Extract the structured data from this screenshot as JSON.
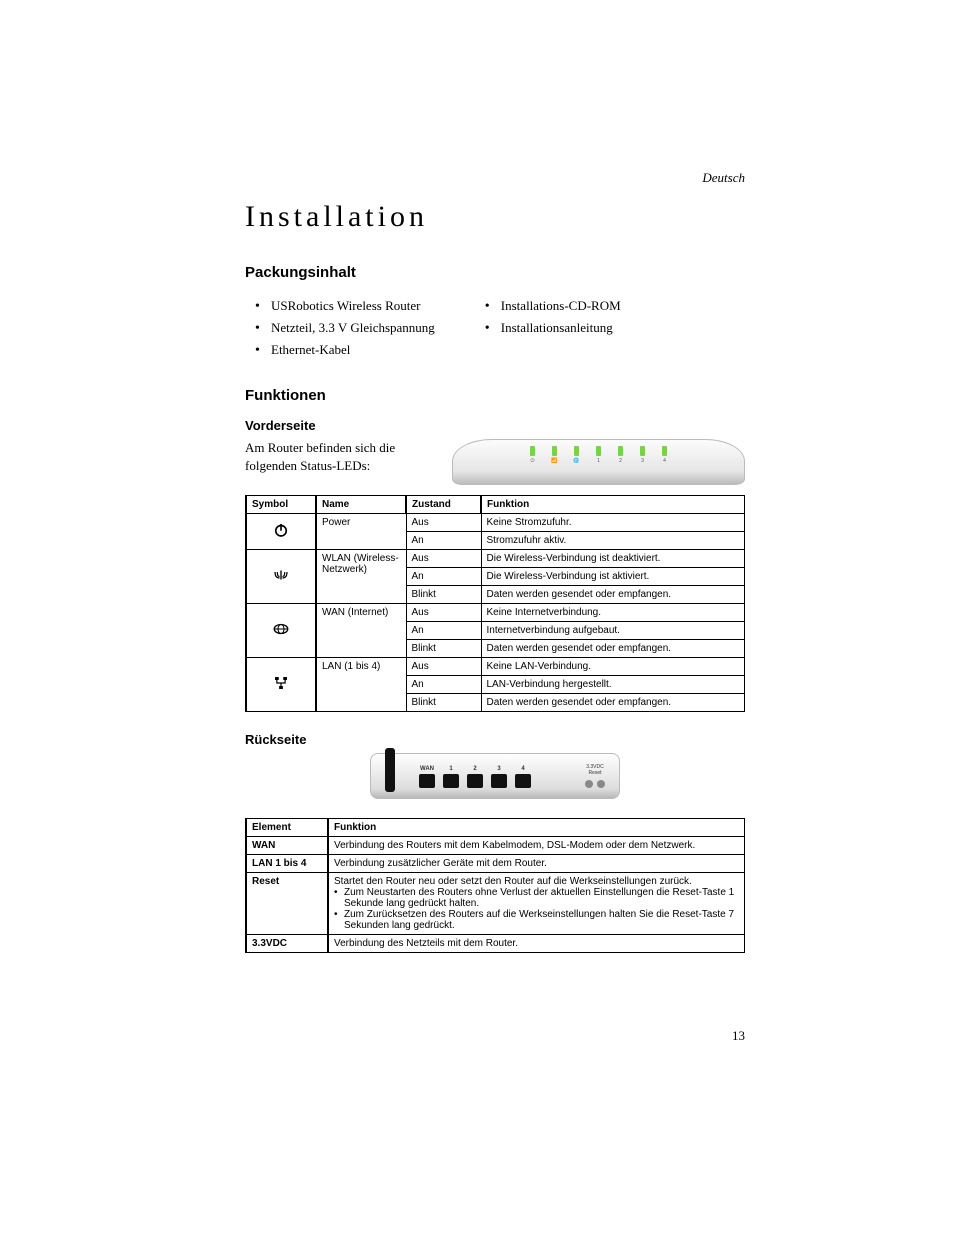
{
  "lang_label": "Deutsch",
  "title": "Installation",
  "contents_heading": "Packungsinhalt",
  "contents_left": [
    "USRobotics Wireless Router",
    "Netzteil, 3.3 V Gleichspannung",
    "Ethernet-Kabel"
  ],
  "contents_right": [
    "Installations-CD-ROM",
    "Installationsanleitung"
  ],
  "features_heading": "Funktionen",
  "front_heading": "Vorderseite",
  "front_text": "Am Router befinden sich die folgenden Status-LEDs:",
  "led_icons": [
    "⏻",
    "📶",
    "🌐",
    "1",
    "2",
    "3",
    "4"
  ],
  "table1": {
    "headers": [
      "Symbol",
      "Name",
      "Zustand",
      "Funktion"
    ],
    "groups": [
      {
        "icon": "power",
        "name": "Power",
        "rows": [
          {
            "state": "Aus",
            "func": "Keine Stromzufuhr."
          },
          {
            "state": "An",
            "func": "Stromzufuhr aktiv."
          }
        ]
      },
      {
        "icon": "wlan",
        "name": "WLAN (Wireless-Netzwerk)",
        "rows": [
          {
            "state": "Aus",
            "func": "Die Wireless-Verbindung ist deaktiviert."
          },
          {
            "state": "An",
            "func": "Die Wireless-Verbindung ist aktiviert."
          },
          {
            "state": "Blinkt",
            "func": "Daten werden gesendet oder empfangen."
          }
        ]
      },
      {
        "icon": "wan",
        "name": "WAN (Internet)",
        "rows": [
          {
            "state": "Aus",
            "func": "Keine Internetverbindung."
          },
          {
            "state": "An",
            "func": "Internetverbindung aufgebaut."
          },
          {
            "state": "Blinkt",
            "func": "Daten werden gesendet oder empfangen."
          }
        ]
      },
      {
        "icon": "lan",
        "name": "LAN (1 bis 4)",
        "rows": [
          {
            "state": "Aus",
            "func": "Keine LAN-Verbindung."
          },
          {
            "state": "An",
            "func": "LAN-Verbindung hergestellt."
          },
          {
            "state": "Blinkt",
            "func": "Daten werden gesendet oder empfangen."
          }
        ]
      }
    ]
  },
  "back_heading": "Rückseite",
  "back_ports": [
    "WAN",
    "1",
    "2",
    "3",
    "4"
  ],
  "back_right_labels": {
    "volt": "3.3VDC",
    "reset": "Reset"
  },
  "table2": {
    "headers": [
      "Element",
      "Funktion"
    ],
    "rows": [
      {
        "el": "WAN",
        "fn": "Verbindung des Routers mit dem Kabelmodem, DSL-Modem oder dem Netzwerk."
      },
      {
        "el": "LAN 1 bis 4",
        "fn": "Verbindung zusätzlicher Geräte mit dem Router."
      },
      {
        "el": "Reset",
        "fn_intro": "Startet den Router neu oder setzt den Router auf die Werkseinstellungen zurück.",
        "fn_bullets": [
          "Zum Neustarten des Routers ohne Verlust der aktuellen Einstellungen die Reset-Taste 1 Sekunde lang gedrückt halten.",
          "Zum Zurücksetzen des Routers auf die Werkseinstellungen halten Sie die Reset-Taste 7 Sekunden lang gedrückt."
        ]
      },
      {
        "el": "3.3VDC",
        "fn": "Verbindung des Netzteils mit dem Router."
      }
    ]
  },
  "page_number": "13"
}
